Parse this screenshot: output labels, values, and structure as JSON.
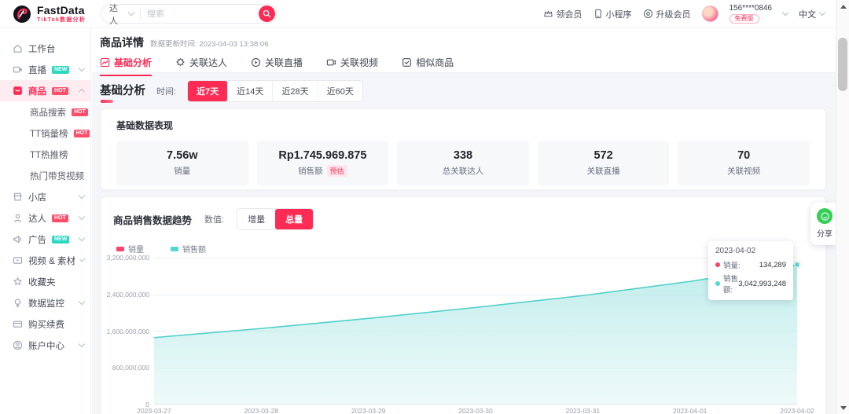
{
  "topbar": {
    "brand": {
      "name": "FastData",
      "subtitle": "TikTok数据分析"
    },
    "search": {
      "category": "达人",
      "placeholder": "搜索"
    },
    "actions": {
      "vip": "领会员",
      "mini_program": "小程序",
      "upgrade": "升级会员",
      "account": "156****0846",
      "plan": "免费版",
      "language": "中文"
    }
  },
  "sidebar": {
    "items": [
      {
        "label": "工作台"
      },
      {
        "label": "直播",
        "badge": "NEW"
      },
      {
        "label": "商品",
        "badge": "HOT"
      },
      {
        "label": "商品搜索",
        "badge": "HOT"
      },
      {
        "label": "TT销量榜",
        "badge": "HOT"
      },
      {
        "label": "TT热推榜"
      },
      {
        "label": "热门带货视频"
      },
      {
        "label": "小店"
      },
      {
        "label": "达人",
        "badge": "HOT"
      },
      {
        "label": "广告",
        "badge": "NEW"
      },
      {
        "label": "视频 & 素材"
      },
      {
        "label": "收藏夹"
      },
      {
        "label": "数据监控"
      },
      {
        "label": "购买续费"
      },
      {
        "label": "账户中心"
      }
    ]
  },
  "page": {
    "title": "商品详情",
    "update_label": "数据更新时间:",
    "update_time": "2023-04-03 13:38:06",
    "tabs": [
      {
        "label": "基础分析"
      },
      {
        "label": "关联达人"
      },
      {
        "label": "关联直播"
      },
      {
        "label": "关联视频"
      },
      {
        "label": "相似商品"
      }
    ],
    "section_title": "基础分析",
    "time_label": "时间:",
    "time_ranges": [
      {
        "label": "近7天"
      },
      {
        "label": "近14天"
      },
      {
        "label": "近28天"
      },
      {
        "label": "近60天"
      }
    ]
  },
  "metrics": {
    "title": "基础数据表现",
    "items": [
      {
        "value": "7.56w",
        "label": "销量"
      },
      {
        "value": "Rp1.745.969.875",
        "label": "销售额",
        "badge": "预估"
      },
      {
        "value": "338",
        "label": "总关联达人"
      },
      {
        "value": "572",
        "label": "关联直播"
      },
      {
        "value": "70",
        "label": "关联视频"
      }
    ]
  },
  "trend": {
    "title": "商品销售数据趋势",
    "value_label": "数值:",
    "modes": [
      {
        "label": "增量"
      },
      {
        "label": "总量"
      }
    ],
    "tooltip": {
      "date": "2023-04-02",
      "rows": [
        {
          "label": "销量:",
          "value": "134,289",
          "color": "#f8436b"
        },
        {
          "label": "销售额:",
          "value": "3,042,993,248",
          "color": "#54d7d0"
        }
      ]
    }
  },
  "share": {
    "label": "分享"
  },
  "colors": {
    "accent": "#fe2c55",
    "teal": "#54d7d0",
    "badge_new": "#2bd9c2",
    "badge_hot": "#ff4d6a"
  },
  "chart_data": {
    "type": "area",
    "title": "商品销售数据趋势",
    "x": [
      "2023-03-27",
      "2023-03-28",
      "2023-03-29",
      "2023-03-30",
      "2023-03-31",
      "2023-04-01",
      "2023-04-02"
    ],
    "series": [
      {
        "name": "销量",
        "color": "#f8436b",
        "values": [
          null,
          null,
          null,
          null,
          null,
          null,
          134289
        ]
      },
      {
        "name": "销售额",
        "color": "#54d7d0",
        "values": [
          1450000000,
          1650000000,
          1870000000,
          2110000000,
          2370000000,
          2680000000,
          3042993248
        ]
      }
    ],
    "ylim": [
      0,
      3200000000
    ],
    "ytick_labels_top_to_bottom": [
      "3,200,000,000",
      "2,400,000,000",
      "1,600,000,000",
      "800,000,000",
      "0"
    ],
    "grid": true,
    "legend": [
      {
        "name": "销量",
        "color": "#f8436b"
      },
      {
        "name": "销售额",
        "color": "#54d7d0"
      }
    ],
    "legend_position": "top-left",
    "tooltip_point": {
      "x": "2023-04-02",
      "sales_volume": 134289,
      "sales_amount": 3042993248
    }
  }
}
